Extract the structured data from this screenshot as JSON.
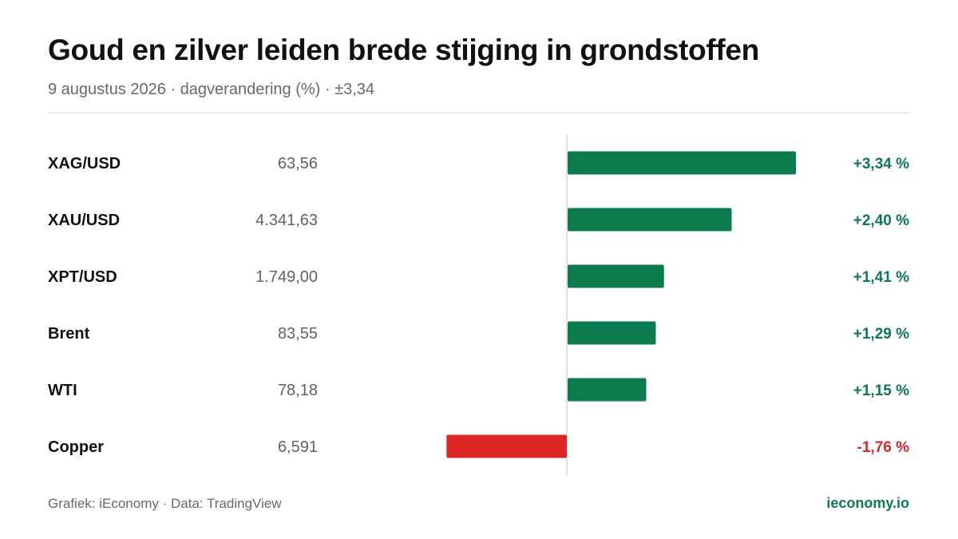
{
  "header": {
    "title": "Goud en zilver leiden brede stijging in grondstoffen",
    "subtitle": "9 augustus 2026 · dagverandering (%) · ±3,34"
  },
  "footer": {
    "credit": "Grafiek: iEconomy · Data: TradingView",
    "brand": "ieconomy.io"
  },
  "colors": {
    "positive": "#0c7b4e",
    "negative": "#dc2626",
    "brand": "#0c7b4e"
  },
  "chart_data": {
    "type": "bar",
    "orientation": "horizontal",
    "categories": [
      "XAG/USD",
      "XAU/USD",
      "XPT/USD",
      "Brent",
      "WTI",
      "Copper"
    ],
    "prices": [
      "63,56",
      "4.341,63",
      "1.749,00",
      "83,55",
      "78,18",
      "6,591"
    ],
    "values": [
      3.34,
      2.4,
      1.41,
      1.29,
      1.15,
      -1.76
    ],
    "value_labels": [
      "+3,34 %",
      "+2,40 %",
      "+1,41 %",
      "+1,29 %",
      "+1,15 %",
      "-1,76 %"
    ],
    "xlim": [
      -3.34,
      3.34
    ],
    "grid": false,
    "baseline": 0
  }
}
